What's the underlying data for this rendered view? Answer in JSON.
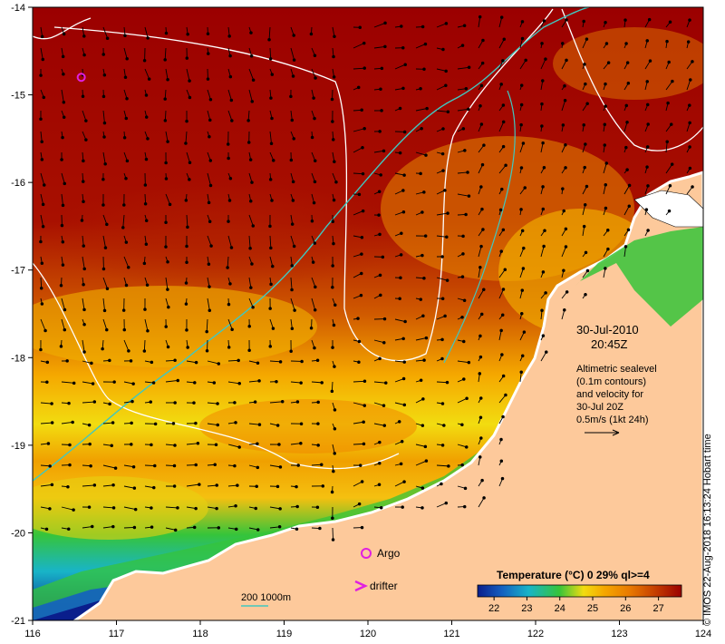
{
  "map": {
    "lon_ticks": [
      116,
      117,
      118,
      119,
      120,
      121,
      122,
      123,
      124
    ],
    "lat_ticks": [
      -14,
      -15,
      -16,
      -17,
      -18,
      -19,
      -20,
      -21
    ],
    "lon_range": [
      116,
      124
    ],
    "lat_range": [
      -21,
      -14
    ],
    "colors": {
      "hot": "#9b0000",
      "warm_red": "#c23a00",
      "orange": "#e87800",
      "amber": "#f5a800",
      "yellow": "#f2dc10",
      "green": "#36c43a",
      "cyan": "#18b4c8",
      "blue": "#1460c0",
      "navy": "#0a1e8c",
      "land": "#fdc99b",
      "contour_white": "#ffffff",
      "isobath": "#40c8c0",
      "marker_magenta": "#e020e0"
    },
    "argo_float": {
      "lon": 116.58,
      "lat": -14.8
    }
  },
  "annotation": {
    "date": "30-Jul-2010",
    "time": "20:45Z",
    "desc_lines": [
      "Altimetric sealevel",
      "(0.1m contours)",
      "and velocity for",
      "30-Jul 20Z",
      "0.5m/s (1kt 24h)"
    ]
  },
  "legend": {
    "argo_label": "Argo",
    "drifter_label": "drifter",
    "isobath_label": "200  1000m"
  },
  "colorbar": {
    "title": "Temperature (°C) 0 29% ql>=4",
    "tick_labels": [
      "22",
      "23",
      "24",
      "25",
      "26",
      "27"
    ],
    "range": [
      21.5,
      27.7
    ],
    "stops": [
      "#0a1e8c",
      "#1460c0",
      "#18b4c8",
      "#36c43a",
      "#f2dc10",
      "#f5a800",
      "#e87800",
      "#c23a00",
      "#9b0000"
    ]
  },
  "credit": "© IMOS 22-Aug-2018 16:13:24 Hobart time"
}
